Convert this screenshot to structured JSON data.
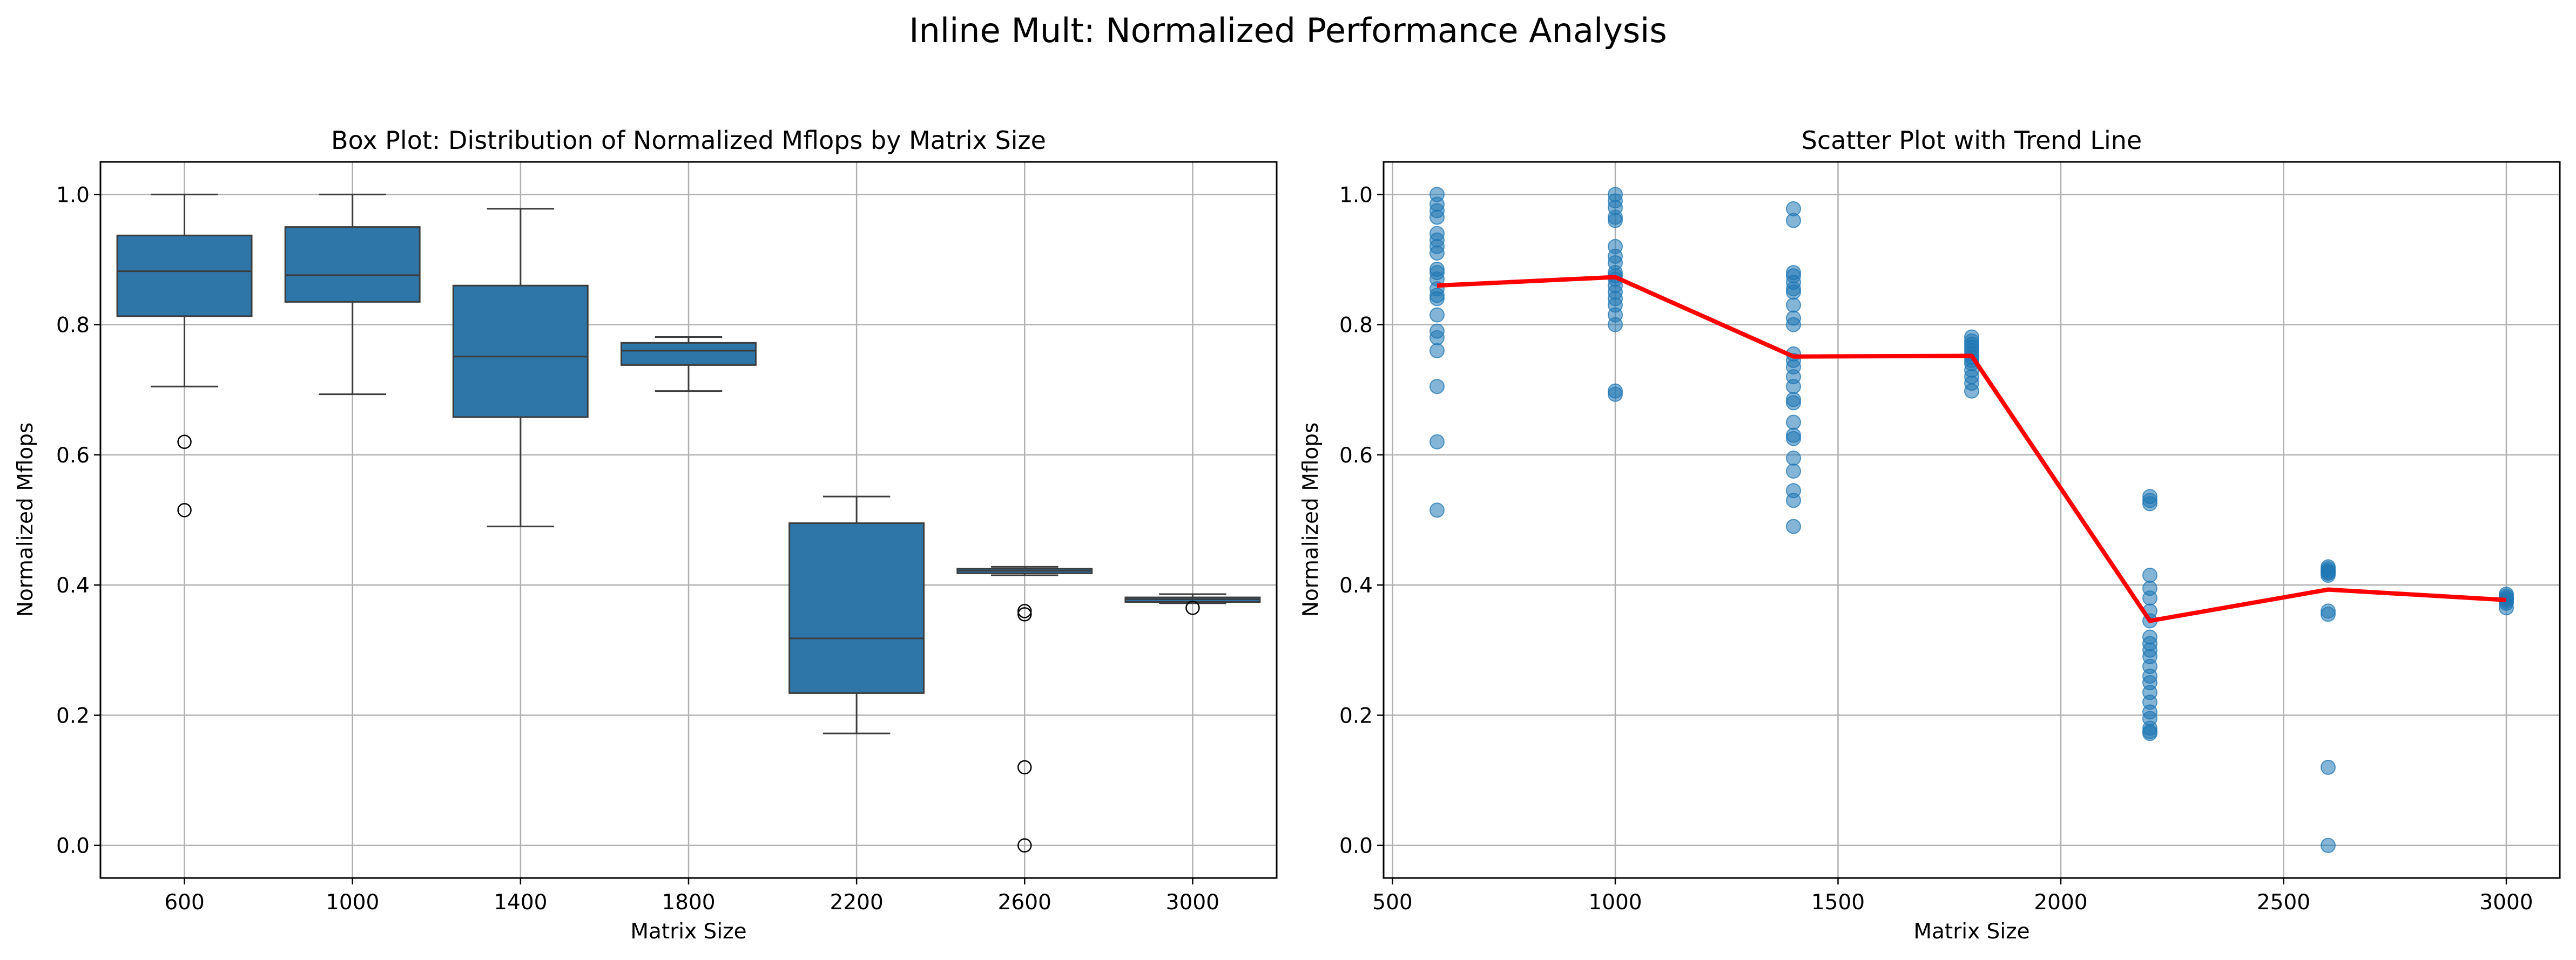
{
  "figure": {
    "suptitle": "Inline Mult: Normalized Performance Analysis"
  },
  "colors": {
    "box_fill": "#2e75a8",
    "box_edge": "#3c3c3c",
    "scatter_point": "#1f77b4",
    "trend_line": "#ff0000",
    "grid": "#b0b0b0"
  },
  "chart_data": [
    {
      "type": "box",
      "title": "Box Plot: Distribution of Normalized Mflops by Matrix Size",
      "xlabel": "Matrix Size",
      "ylabel": "Normalized Mflops",
      "categories": [
        "600",
        "1000",
        "1400",
        "1800",
        "2200",
        "2600",
        "3000"
      ],
      "ylim": [
        -0.05,
        1.05
      ],
      "yticks": [
        "0.0",
        "0.2",
        "0.4",
        "0.6",
        "0.8",
        "1.0"
      ],
      "grid": true,
      "boxes": [
        {
          "category": "600",
          "whisker_low": 0.705,
          "q1": 0.813,
          "median": 0.882,
          "q3": 0.937,
          "whisker_high": 1.0,
          "outliers": [
            0.62,
            0.515
          ]
        },
        {
          "category": "1000",
          "whisker_low": 0.693,
          "q1": 0.835,
          "median": 0.876,
          "q3": 0.95,
          "whisker_high": 1.0,
          "outliers": []
        },
        {
          "category": "1400",
          "whisker_low": 0.49,
          "q1": 0.658,
          "median": 0.751,
          "q3": 0.86,
          "whisker_high": 0.978,
          "outliers": []
        },
        {
          "category": "1800",
          "whisker_low": 0.698,
          "q1": 0.738,
          "median": 0.76,
          "q3": 0.772,
          "whisker_high": 0.781,
          "outliers": []
        },
        {
          "category": "2200",
          "whisker_low": 0.172,
          "q1": 0.234,
          "median": 0.318,
          "q3": 0.495,
          "whisker_high": 0.536,
          "outliers": []
        },
        {
          "category": "2600",
          "whisker_low": 0.415,
          "q1": 0.418,
          "median": 0.422,
          "q3": 0.425,
          "whisker_high": 0.428,
          "outliers": [
            0.36,
            0.355,
            0.12,
            0.0
          ]
        },
        {
          "category": "3000",
          "whisker_low": 0.372,
          "q1": 0.374,
          "median": 0.378,
          "q3": 0.381,
          "whisker_high": 0.386,
          "outliers": [
            0.365
          ]
        }
      ]
    },
    {
      "type": "scatter",
      "title": "Scatter Plot with Trend Line",
      "xlabel": "Matrix Size",
      "ylabel": "Normalized Mflops",
      "xlim": [
        480,
        3120
      ],
      "ylim": [
        -0.05,
        1.05
      ],
      "xticks": [
        "500",
        "1000",
        "1500",
        "2000",
        "2500",
        "3000"
      ],
      "yticks": [
        "0.0",
        "0.2",
        "0.4",
        "0.6",
        "0.8",
        "1.0"
      ],
      "grid": true,
      "points": [
        {
          "x": 600,
          "y": [
            1.0,
            0.985,
            0.975,
            0.965,
            0.94,
            0.93,
            0.92,
            0.91,
            0.885,
            0.88,
            0.87,
            0.855,
            0.845,
            0.84,
            0.815,
            0.79,
            0.78,
            0.76,
            0.705,
            0.62,
            0.515
          ]
        },
        {
          "x": 1000,
          "y": [
            1.0,
            0.99,
            0.98,
            0.965,
            0.96,
            0.92,
            0.905,
            0.895,
            0.88,
            0.875,
            0.87,
            0.86,
            0.85,
            0.84,
            0.83,
            0.815,
            0.8,
            0.698,
            0.693
          ]
        },
        {
          "x": 1400,
          "y": [
            0.978,
            0.96,
            0.88,
            0.875,
            0.865,
            0.855,
            0.85,
            0.83,
            0.81,
            0.8,
            0.755,
            0.745,
            0.735,
            0.72,
            0.705,
            0.685,
            0.68,
            0.65,
            0.63,
            0.625,
            0.595,
            0.575,
            0.545,
            0.53,
            0.49
          ]
        },
        {
          "x": 1800,
          "y": [
            0.781,
            0.775,
            0.77,
            0.765,
            0.76,
            0.755,
            0.75,
            0.745,
            0.74,
            0.73,
            0.72,
            0.71,
            0.698
          ]
        },
        {
          "x": 2200,
          "y": [
            0.536,
            0.53,
            0.525,
            0.415,
            0.395,
            0.38,
            0.36,
            0.345,
            0.32,
            0.31,
            0.3,
            0.29,
            0.275,
            0.26,
            0.25,
            0.235,
            0.22,
            0.205,
            0.195,
            0.18,
            0.175,
            0.172
          ]
        },
        {
          "x": 2600,
          "y": [
            0.428,
            0.425,
            0.422,
            0.42,
            0.418,
            0.415,
            0.36,
            0.355,
            0.12,
            0.0
          ]
        },
        {
          "x": 3000,
          "y": [
            0.386,
            0.383,
            0.38,
            0.378,
            0.375,
            0.372,
            0.365
          ]
        }
      ],
      "trend_line": {
        "x": [
          600,
          1000,
          1400,
          1800,
          2200,
          2600,
          3000
        ],
        "y": [
          0.86,
          0.873,
          0.751,
          0.752,
          0.345,
          0.393,
          0.377
        ]
      }
    }
  ]
}
